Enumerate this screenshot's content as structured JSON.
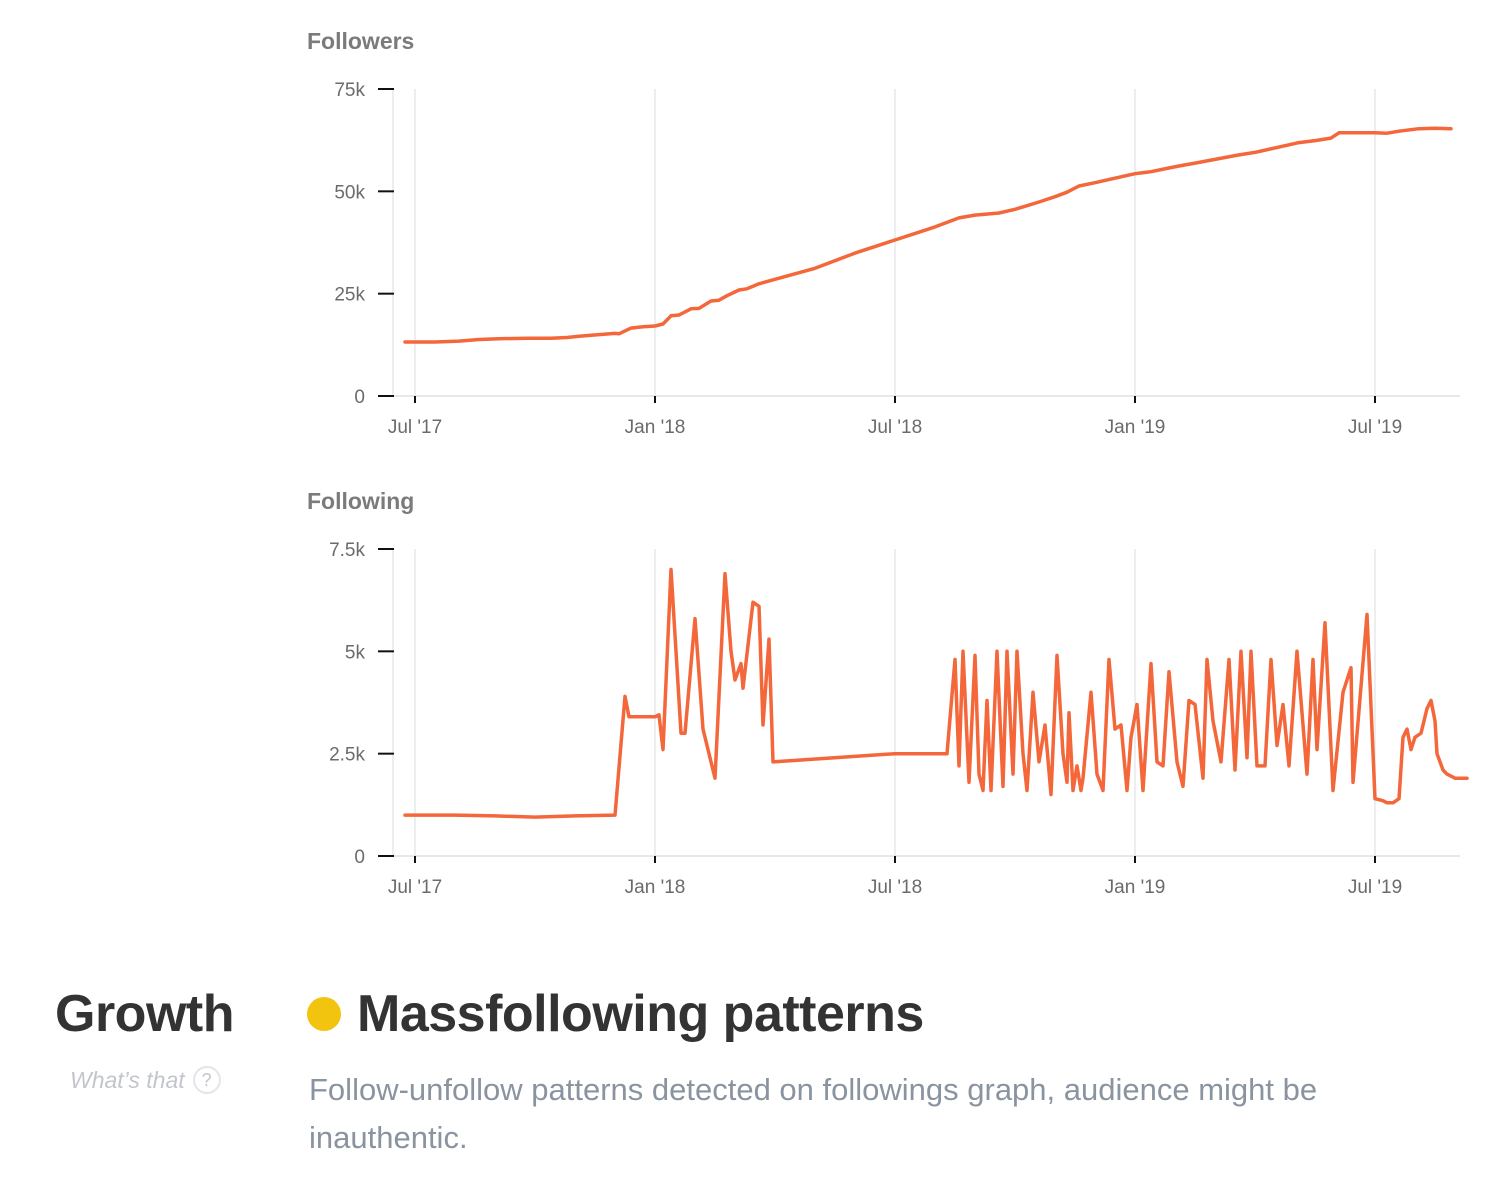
{
  "colors": {
    "line": "#f4673a",
    "grid": "#e6e8ea",
    "axis": "#111111",
    "status_dot": "#f2c40f"
  },
  "chart_data": [
    {
      "type": "line",
      "title": "Followers",
      "xlabel": "",
      "ylabel": "",
      "x_unit": "months since Jul 2017",
      "x_ticks": [
        0,
        6,
        12,
        18,
        24
      ],
      "x_tick_labels": [
        "Jul '17",
        "Jan '18",
        "Jul '18",
        "Jan '19",
        "Jul '19"
      ],
      "xlim": [
        -0.5,
        26.5
      ],
      "y_ticks": [
        0,
        25,
        50,
        75
      ],
      "y_tick_labels": [
        "0",
        "25k",
        "50k",
        "75k"
      ],
      "ylim": [
        0,
        75
      ],
      "y_unit": "thousands",
      "grid": "vertical",
      "series": [
        {
          "name": "Followers",
          "x": [
            -0.25,
            0.5,
            1.1,
            1.6,
            2.1,
            2.8,
            3.4,
            3.8,
            4.1,
            4.6,
            5.0,
            5.1,
            5.4,
            5.7,
            6.0,
            6.2,
            6.4,
            6.6,
            6.9,
            7.1,
            7.4,
            7.6,
            7.8,
            8.1,
            8.3,
            8.6,
            9.0,
            10.0,
            11.0,
            12.0,
            13.0,
            13.6,
            14.0,
            14.6,
            15.0,
            15.3,
            15.6,
            16.0,
            16.3,
            16.6,
            17.0,
            17.4,
            18.0,
            18.4,
            18.8,
            19.1,
            19.5,
            20.0,
            20.6,
            21.0,
            21.5,
            22.1,
            22.5,
            22.9,
            23.1,
            23.5,
            24.0,
            24.3,
            24.6,
            25.1,
            25.5,
            25.9
          ],
          "values": [
            13.2,
            13.2,
            13.4,
            13.8,
            14.0,
            14.1,
            14.1,
            14.3,
            14.6,
            15.0,
            15.3,
            15.2,
            16.6,
            16.9,
            17.1,
            17.6,
            19.6,
            19.8,
            21.3,
            21.4,
            23.2,
            23.4,
            24.5,
            25.9,
            26.2,
            27.4,
            28.5,
            31.2,
            34.9,
            38.1,
            41.3,
            43.5,
            44.2,
            44.7,
            45.6,
            46.5,
            47.4,
            48.7,
            49.8,
            51.3,
            52.1,
            53.0,
            54.3,
            54.8,
            55.6,
            56.2,
            56.9,
            57.8,
            58.9,
            59.5,
            60.6,
            61.9,
            62.4,
            63.0,
            64.3,
            64.3,
            64.3,
            64.2,
            64.7,
            65.3,
            65.4,
            65.3
          ]
        }
      ]
    },
    {
      "type": "line",
      "title": "Following",
      "xlabel": "",
      "ylabel": "",
      "x_unit": "months since Jul 2017",
      "x_ticks": [
        0,
        6,
        12,
        18,
        24
      ],
      "x_tick_labels": [
        "Jul '17",
        "Jan '18",
        "Jul '18",
        "Jan '19",
        "Jul '19"
      ],
      "xlim": [
        -0.5,
        26.5
      ],
      "y_ticks": [
        0,
        2.5,
        5,
        7.5
      ],
      "y_tick_labels": [
        "0",
        "2.5k",
        "5k",
        "7.5k"
      ],
      "ylim": [
        0,
        7.5
      ],
      "y_unit": "thousands",
      "grid": "vertical",
      "series": [
        {
          "name": "Following",
          "x": [
            -0.25,
            1.0,
            2.0,
            3.0,
            4.0,
            5.0,
            5.0,
            5.25,
            5.35,
            5.5,
            6.0,
            6.1,
            6.2,
            6.4,
            6.65,
            6.75,
            7.0,
            7.2,
            7.5,
            7.75,
            7.9,
            8.0,
            8.15,
            8.2,
            8.45,
            8.6,
            8.7,
            8.85,
            8.95,
            12.0,
            13.3,
            13.5,
            13.6,
            13.7,
            13.85,
            14.0,
            14.1,
            14.2,
            14.3,
            14.4,
            14.55,
            14.7,
            14.8,
            14.95,
            15.05,
            15.2,
            15.3,
            15.45,
            15.6,
            15.75,
            15.9,
            16.05,
            16.2,
            16.3,
            16.35,
            16.45,
            16.55,
            16.65,
            16.7,
            16.9,
            17.05,
            17.2,
            17.35,
            17.5,
            17.65,
            17.8,
            17.9,
            18.05,
            18.2,
            18.4,
            18.55,
            18.7,
            18.85,
            19.05,
            19.2,
            19.35,
            19.5,
            19.7,
            19.8,
            19.95,
            20.15,
            20.35,
            20.5,
            20.65,
            20.8,
            20.9,
            21.05,
            21.25,
            21.4,
            21.55,
            21.7,
            21.85,
            22.05,
            22.3,
            22.45,
            22.55,
            22.75,
            22.95,
            23.2,
            23.4,
            23.45,
            23.8,
            24.0,
            24.2,
            24.3,
            24.45,
            24.6,
            24.7,
            24.8,
            24.9,
            25.0,
            25.15,
            25.3,
            25.4,
            25.5,
            25.55,
            25.7,
            25.8,
            26.0,
            26.3
          ],
          "values": [
            1.0,
            1.0,
            0.98,
            0.95,
            0.98,
            1.0,
            1.0,
            3.9,
            3.4,
            3.4,
            3.4,
            3.45,
            2.6,
            7.0,
            3.0,
            3.0,
            5.8,
            3.1,
            1.9,
            6.9,
            5.0,
            4.3,
            4.7,
            4.1,
            6.2,
            6.1,
            3.2,
            5.3,
            2.3,
            2.5,
            2.5,
            4.8,
            2.2,
            5.0,
            1.8,
            4.9,
            2.0,
            1.6,
            3.8,
            1.6,
            5.0,
            1.7,
            5.0,
            2.0,
            5.0,
            2.5,
            1.6,
            4.0,
            2.3,
            3.2,
            1.5,
            4.9,
            2.5,
            1.8,
            3.5,
            1.6,
            2.2,
            1.6,
            1.9,
            4.0,
            2.0,
            1.6,
            4.8,
            3.1,
            3.2,
            1.6,
            2.9,
            3.7,
            1.6,
            4.7,
            2.3,
            2.2,
            4.5,
            2.3,
            1.7,
            3.8,
            3.7,
            1.9,
            4.8,
            3.3,
            2.3,
            4.8,
            2.1,
            5.0,
            2.4,
            5.0,
            2.2,
            2.2,
            4.8,
            2.7,
            3.7,
            2.2,
            5.0,
            2.0,
            4.8,
            2.6,
            5.7,
            1.6,
            4.0,
            4.6,
            1.8,
            5.9,
            1.4,
            1.35,
            1.3,
            1.3,
            1.4,
            2.9,
            3.1,
            2.6,
            2.9,
            3.0,
            3.6,
            3.8,
            3.3,
            2.5,
            2.1,
            2.0,
            1.9,
            1.9
          ]
        }
      ]
    }
  ],
  "charts": [
    {
      "title": "Followers"
    },
    {
      "title": "Following"
    }
  ],
  "growth": {
    "title": "Growth",
    "help_label": "What’s that",
    "help_icon_glyph": "?"
  },
  "status": {
    "severity": "warning",
    "title": "Massfollowing patterns",
    "description": "Follow-unfollow patterns detected on followings graph, audience might be inauthentic."
  }
}
